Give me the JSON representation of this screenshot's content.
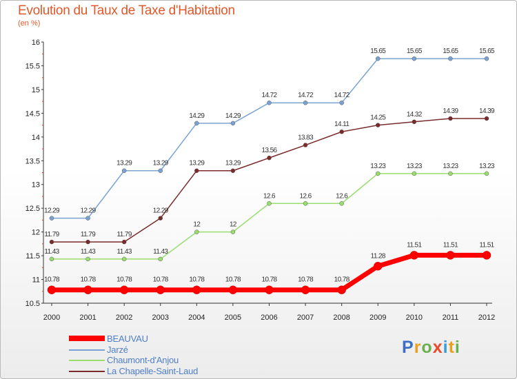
{
  "header": {
    "title": "Evolution du Taux de Taxe d'Habitation",
    "subtitle": "(en %)"
  },
  "logo": {
    "text": "Proxiti",
    "colors": [
      "#3a6fc4",
      "#e8a020",
      "#6ab04c",
      "#e84a2a",
      "#3a9bd5",
      "#e8a020",
      "#6ab04c"
    ]
  },
  "chart_data": {
    "type": "line",
    "x": [
      "2000",
      "2001",
      "2002",
      "2003",
      "2004",
      "2005",
      "2006",
      "2007",
      "2008",
      "2009",
      "2010",
      "2011",
      "2012"
    ],
    "ylim": [
      10.5,
      16
    ],
    "yticks": [
      10.5,
      11,
      11.5,
      12,
      12.5,
      13,
      13.5,
      14,
      14.5,
      15,
      15.5,
      16
    ],
    "ytick_labels": [
      "10.5",
      "11",
      "11.5",
      "12",
      "12.5",
      "13",
      "13.5",
      "14",
      "14.5",
      "15",
      "15.5",
      "16"
    ],
    "grid": false,
    "legend_position": "bottom-left",
    "series": [
      {
        "name": "BEAUVAU",
        "color": "#ff0000",
        "values": [
          10.78,
          10.78,
          10.78,
          10.78,
          10.78,
          10.78,
          10.78,
          10.78,
          10.78,
          11.28,
          11.51,
          11.51,
          11.51
        ],
        "labels": [
          "10.78",
          "10.78",
          "10.78",
          "10.78",
          "10.78",
          "10.78",
          "10.78",
          "10.78",
          "10.78",
          "11.28",
          "11.51",
          "11.51",
          "11.51"
        ]
      },
      {
        "name": "Jarzé",
        "color": "#7aa3d4",
        "values": [
          12.29,
          12.29,
          13.29,
          13.29,
          14.29,
          14.29,
          14.72,
          14.72,
          14.72,
          15.65,
          15.65,
          15.65,
          15.65
        ],
        "labels": [
          "12.29",
          "12.29",
          "13.29",
          "13.29",
          "14.29",
          "14.29",
          "14.72",
          "14.72",
          "14.72",
          "15.65",
          "15.65",
          "15.65",
          "15.65"
        ]
      },
      {
        "name": "Chaumont-d'Anjou",
        "color": "#99dd6e",
        "values": [
          11.43,
          11.43,
          11.43,
          11.43,
          12,
          12,
          12.6,
          12.6,
          12.6,
          13.23,
          13.23,
          13.23,
          13.23
        ],
        "labels": [
          "11.43",
          "11.43",
          "11.43",
          "11.43",
          "12",
          "12",
          "12.6",
          "12.6",
          "12.6",
          "13.23",
          "13.23",
          "13.23",
          "13.23"
        ]
      },
      {
        "name": "La Chapelle-Saint-Laud",
        "color": "#7a2a2a",
        "values": [
          11.79,
          11.79,
          11.79,
          12.29,
          13.29,
          13.29,
          13.56,
          13.83,
          14.11,
          14.25,
          14.32,
          14.39,
          14.39
        ],
        "labels": [
          "11.79",
          "11.79",
          "11.79",
          "12.29",
          "13.29",
          "13.29",
          "13.56",
          "13.83",
          "14.11",
          "14.25",
          "14.32",
          "14.39",
          "14.39"
        ]
      }
    ]
  }
}
